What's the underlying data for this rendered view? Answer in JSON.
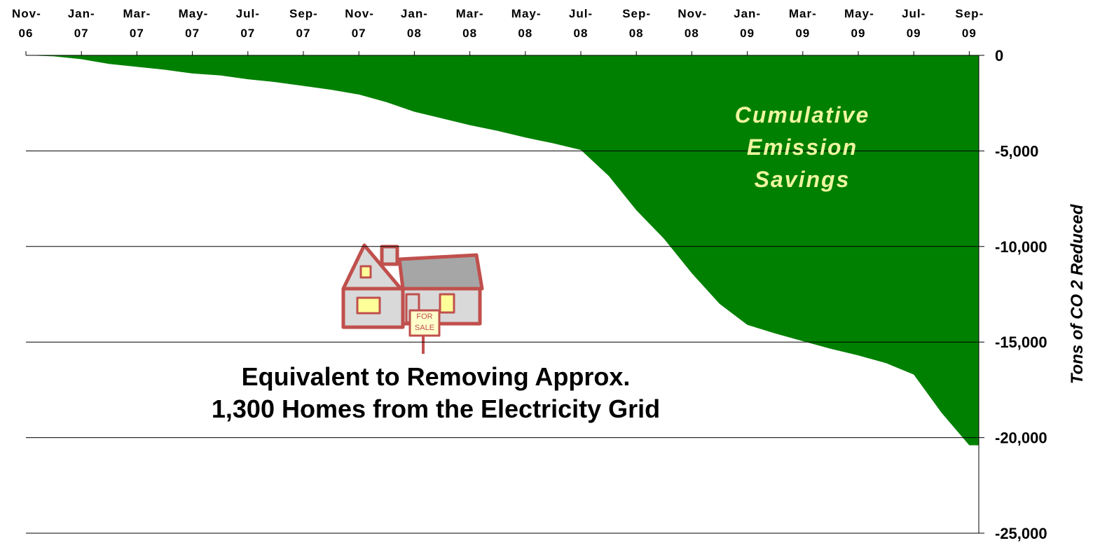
{
  "chart_data": {
    "type": "area",
    "categories": [
      "Nov-06",
      null,
      "Jan-07",
      null,
      "Mar-07",
      null,
      "May-07",
      null,
      "Jul-07",
      null,
      "Sep-07",
      null,
      "Nov-07",
      null,
      "Jan-08",
      null,
      "Mar-08",
      null,
      "May-08",
      null,
      "Jul-08",
      null,
      "Sep-08",
      null,
      "Nov-08",
      null,
      "Jan-09",
      null,
      "Mar-09",
      null,
      "May-09",
      null,
      "Jul-09",
      null,
      "Sep-09"
    ],
    "values": [
      0,
      -50,
      -200,
      -450,
      -600,
      -750,
      -950,
      -1050,
      -1250,
      -1400,
      -1600,
      -1800,
      -2050,
      -2450,
      -2950,
      -3300,
      -3650,
      -3950,
      -4300,
      -4600,
      -4950,
      -6300,
      -8100,
      -9600,
      -11400,
      -13000,
      -14100,
      -14550,
      -14950,
      -15350,
      -15700,
      -16100,
      -16700,
      -18700,
      -20400
    ],
    "color": "#008000",
    "ylim": [
      -25000,
      0
    ],
    "yticks": [
      {
        "value": 0,
        "label": "0"
      },
      {
        "value": -5000,
        "label": "-5,000"
      },
      {
        "value": -10000,
        "label": "-10,000"
      },
      {
        "value": -15000,
        "label": "-15,000"
      },
      {
        "value": -20000,
        "label": "-20,000"
      },
      {
        "value": -25000,
        "label": "-25,000"
      }
    ],
    "ylabel": "Tons of CO 2 Reduced",
    "grid": true,
    "annotation_color": "#eef5a0",
    "area_annotation": [
      "Cumulative",
      "Emission",
      "Savings"
    ],
    "note": [
      "Equivalent to Removing Approx.",
      "1,300 Homes from the Electricity Grid"
    ],
    "house_sign": [
      "FOR",
      "SALE"
    ]
  }
}
